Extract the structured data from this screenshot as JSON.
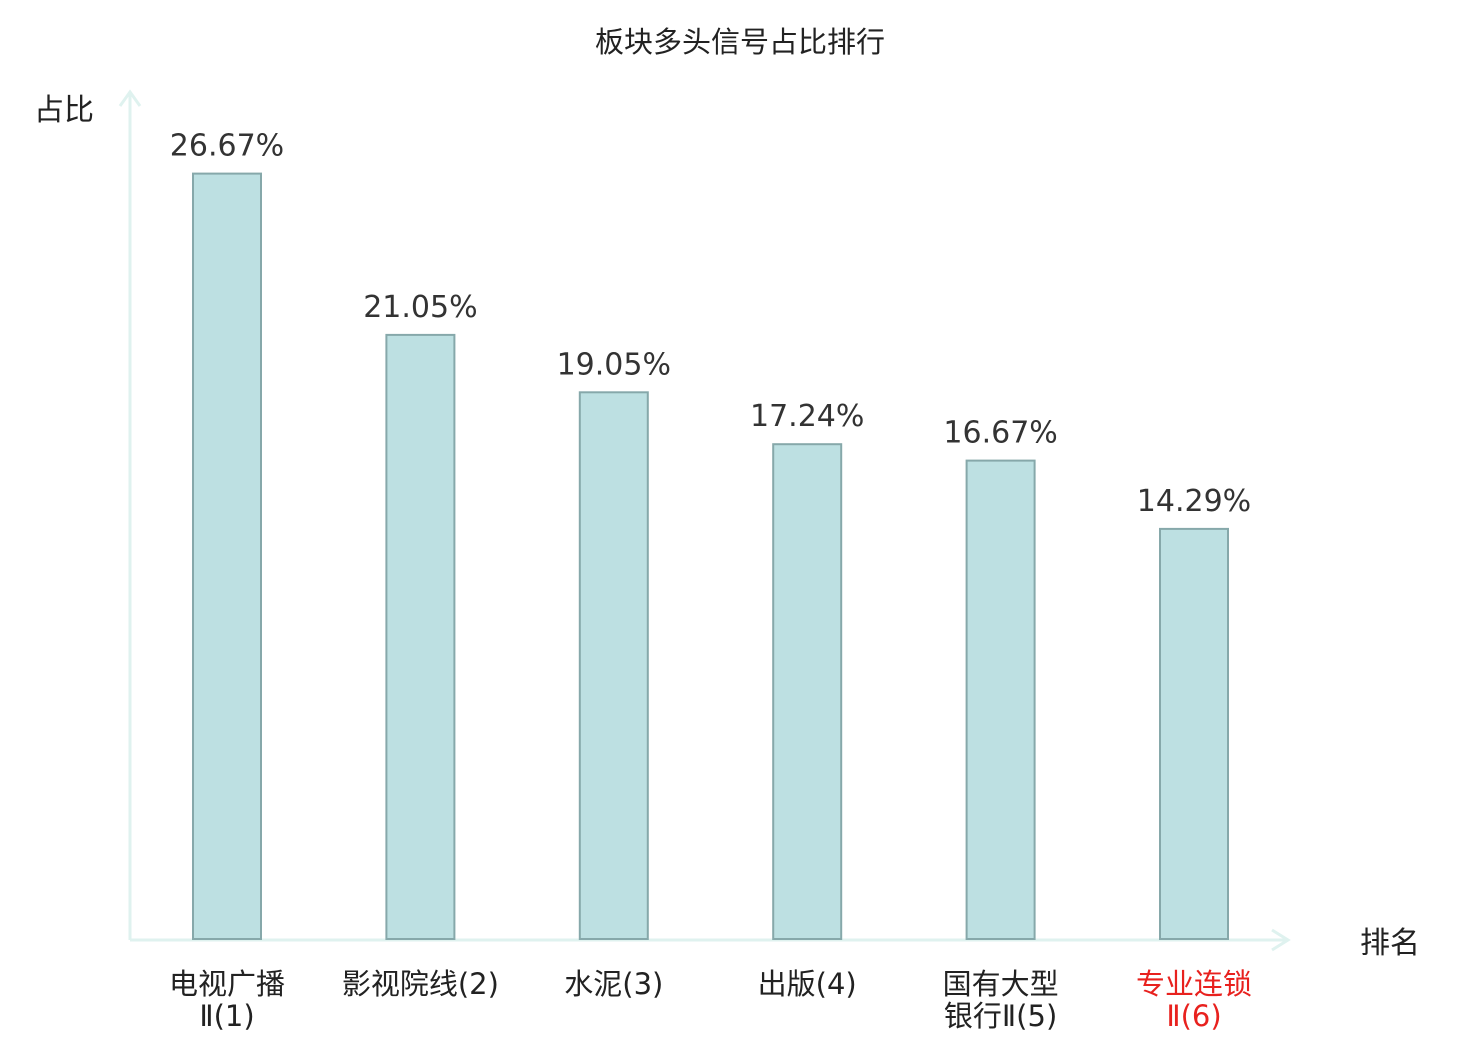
{
  "chart_data": {
    "type": "bar",
    "title": "板块多头信号占比排行",
    "ylabel": "占比",
    "xlabel": "排名",
    "categories": [
      [
        "电视广播",
        "Ⅱ(1)"
      ],
      [
        "影视院线(2)"
      ],
      [
        "水泥(3)"
      ],
      [
        "出版(4)"
      ],
      [
        "国有大型",
        "银行Ⅱ(5)"
      ],
      [
        "专业连锁",
        "Ⅱ(6)"
      ]
    ],
    "values": [
      26.67,
      21.05,
      19.05,
      17.24,
      16.67,
      14.29
    ],
    "value_labels": [
      "26.67%",
      "21.05%",
      "19.05%",
      "17.24%",
      "16.67%",
      "14.29%"
    ],
    "highlight_index": 5,
    "ylim": [
      0,
      30
    ],
    "grid": false,
    "colors": {
      "bar_fill": "#bde0e2",
      "bar_stroke": "#86a8aa",
      "axis": "#dff2ef",
      "text": "#222222",
      "highlight_text": "#e8211e"
    }
  }
}
